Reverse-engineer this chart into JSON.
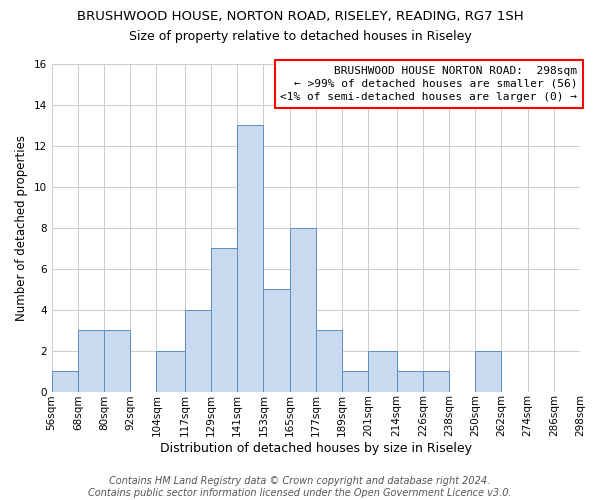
{
  "title": "BRUSHWOOD HOUSE, NORTON ROAD, RISELEY, READING, RG7 1SH",
  "subtitle": "Size of property relative to detached houses in Riseley",
  "xlabel": "Distribution of detached houses by size in Riseley",
  "ylabel": "Number of detached properties",
  "bin_edges": [
    56,
    68,
    80,
    92,
    104,
    117,
    129,
    141,
    153,
    165,
    177,
    189,
    201,
    214,
    226,
    238,
    250,
    262,
    274,
    286,
    298
  ],
  "bar_heights": [
    1,
    3,
    3,
    0,
    2,
    4,
    7,
    13,
    5,
    8,
    3,
    1,
    2,
    1,
    1,
    0,
    2,
    0,
    0,
    0
  ],
  "bar_color": "#c9d9f0",
  "bar_edgecolor": "#5b8ec4",
  "ylim": [
    0,
    16
  ],
  "yticks": [
    0,
    2,
    4,
    6,
    8,
    10,
    12,
    14,
    16
  ],
  "grid_color": "#cccccc",
  "annotation_line1": "BRUSHWOOD HOUSE NORTON ROAD:  298sqm",
  "annotation_line2": "← >99% of detached houses are smaller (56)",
  "annotation_line3": "<1% of semi-detached houses are larger (0) →",
  "footer_line1": "Contains HM Land Registry data © Crown copyright and database right 2024.",
  "footer_line2": "Contains public sector information licensed under the Open Government Licence v3.0.",
  "title_fontsize": 9.5,
  "subtitle_fontsize": 9,
  "xlabel_fontsize": 9,
  "ylabel_fontsize": 8.5,
  "tick_label_fontsize": 7.5,
  "annotation_fontsize": 8,
  "footer_fontsize": 7,
  "bg_color": "#ffffff",
  "tick_labels": [
    "56sqm",
    "68sqm",
    "80sqm",
    "92sqm",
    "104sqm",
    "117sqm",
    "129sqm",
    "141sqm",
    "153sqm",
    "165sqm",
    "177sqm",
    "189sqm",
    "201sqm",
    "214sqm",
    "226sqm",
    "238sqm",
    "250sqm",
    "262sqm",
    "274sqm",
    "286sqm",
    "298sqm"
  ]
}
